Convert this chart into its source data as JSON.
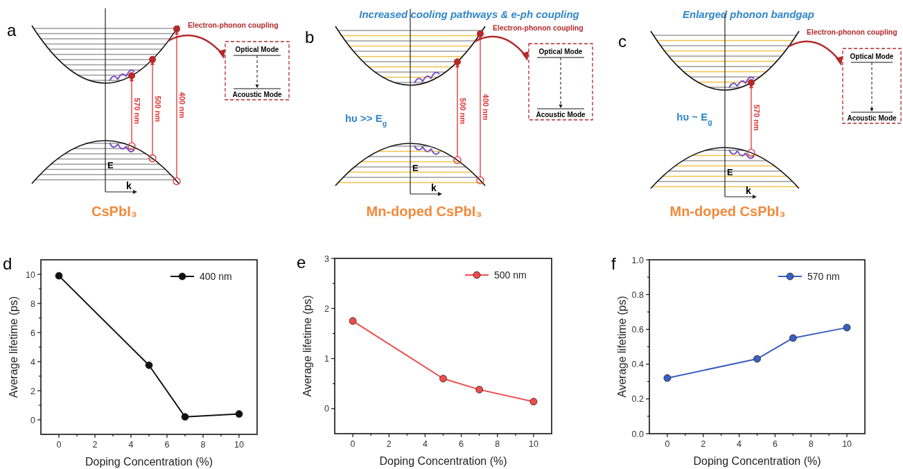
{
  "chart_data": [
    {
      "type": "other",
      "annotations": [
        "a",
        "Electron-phonon coupling",
        "Optical Mode",
        "Acoustic Mode",
        "E",
        "k",
        "CsPbI₃",
        "570 nm",
        "500 nm",
        "400 nm"
      ]
    },
    {
      "type": "other",
      "title": "Increased cooling pathways & e-ph coupling",
      "annotations": [
        "b",
        "Electron-phonon coupling",
        "Optical Mode",
        "Acoustic Mode",
        "E",
        "k",
        "Mn-doped CsPbI₃",
        "hυ >> E$_{g}$",
        "500 nm",
        "400 nm"
      ]
    },
    {
      "type": "other",
      "title": "Enlarged phonon bandgap",
      "annotations": [
        "c",
        "Electron-phonon coupling",
        "Optical Mode",
        "Acoustic Mode",
        "E",
        "k",
        "Mn-doped CsPbI₃",
        "hυ ~ E$_{g}$",
        "570 nm"
      ]
    },
    {
      "type": "line",
      "annotations": [
        "d"
      ],
      "xlabel": "Doping Concentration (%)",
      "ylabel": "Average lifetime (ps)",
      "x": [
        0,
        5,
        7,
        10
      ],
      "xlim": [
        -1,
        11
      ],
      "xticks": [
        0,
        {
          "value": 1,
          "label": null
        },
        2,
        {
          "value": 3,
          "label": null
        },
        4,
        {
          "value": 5,
          "label": null
        },
        6,
        {
          "value": 7,
          "label": null
        },
        8,
        {
          "value": 9,
          "label": null
        },
        10
      ],
      "ylim": [
        -1,
        11
      ],
      "yticks": [
        0,
        {
          "value": 1,
          "label": null
        },
        2,
        {
          "value": 3,
          "label": null
        },
        4,
        {
          "value": 5,
          "label": null
        },
        6,
        {
          "value": 7,
          "label": null
        },
        8,
        {
          "value": 9,
          "label": null
        },
        10
      ],
      "marker": "circle",
      "legend": "top right",
      "series": [
        {
          "name": "400 nm",
          "color": "#111111",
          "values": [
            9.9,
            3.75,
            0.2,
            0.4
          ]
        }
      ]
    },
    {
      "type": "line",
      "annotations": [
        "e"
      ],
      "xlabel": "Doping Concentration (%)",
      "ylabel": "Average lifetime (ps)",
      "x": [
        0,
        5,
        7,
        10
      ],
      "xlim": [
        -1,
        11
      ],
      "xticks": [
        0,
        {
          "value": 1,
          "label": null
        },
        2,
        {
          "value": 3,
          "label": null
        },
        4,
        {
          "value": 5,
          "label": null
        },
        6,
        {
          "value": 7,
          "label": null
        },
        8,
        {
          "value": 9,
          "label": null
        },
        10
      ],
      "ylim": [
        -0.5,
        3
      ],
      "yticks": [
        0,
        {
          "value": 0.5,
          "label": null
        },
        1,
        {
          "value": 1.5,
          "label": null
        },
        2,
        {
          "value": 2.5,
          "label": null
        },
        3
      ],
      "marker": "circle",
      "legend": "top right",
      "series": [
        {
          "name": "500 nm",
          "color": "#ef4b4b",
          "values": [
            1.75,
            0.6,
            0.38,
            0.14
          ]
        }
      ]
    },
    {
      "type": "line",
      "annotations": [
        "f"
      ],
      "xlabel": "Doping Concentration (%)",
      "ylabel": "Average lifetime (ps)",
      "x": [
        0,
        5,
        7,
        10
      ],
      "xlim": [
        -1,
        11
      ],
      "xticks": [
        0,
        {
          "value": 1,
          "label": null
        },
        2,
        {
          "value": 3,
          "label": null
        },
        4,
        {
          "value": 5,
          "label": null
        },
        6,
        {
          "value": 7,
          "label": null
        },
        8,
        {
          "value": 9,
          "label": null
        },
        10
      ],
      "ylim": [
        0,
        1
      ],
      "yticks": [
        {
          "value": 0,
          "label": "0.0"
        },
        {
          "value": 0.1,
          "label": null
        },
        0.2,
        {
          "value": 0.3,
          "label": null
        },
        0.4,
        {
          "value": 0.5,
          "label": null
        },
        0.6,
        {
          "value": 0.7,
          "label": null
        },
        0.8,
        {
          "value": 0.9,
          "label": null
        },
        {
          "value": 1,
          "label": "1.0"
        }
      ],
      "marker": "circle",
      "legend": "top right",
      "series": [
        {
          "name": "570 nm",
          "color": "#3b5fc0",
          "values": [
            0.32,
            0.43,
            0.55,
            0.61
          ]
        }
      ]
    }
  ]
}
